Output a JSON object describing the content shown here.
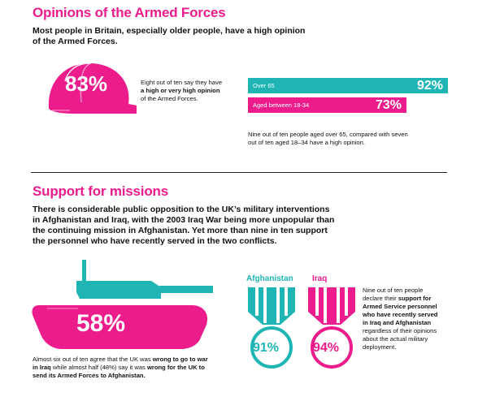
{
  "colors": {
    "pink": "#ec1c8c",
    "teal": "#1fb5b5",
    "dark": "#111111"
  },
  "section1": {
    "title": "Opinions of the Armed Forces",
    "lead_line1": "Most people in Britain, especially older people, have a high opinion",
    "lead_line2": "of the Armed Forces.",
    "helmet_icon": "helmet-icon",
    "helmet_percent": "83%",
    "helmet_text_line1": "Eight out of ten say they have",
    "helmet_text_bold": "a high or very high opinion",
    "helmet_text_line3": "of the Armed Forces.",
    "bars": [
      {
        "label": "Over 65",
        "percent": "92%",
        "value": 92,
        "color": "#1fb5b5"
      },
      {
        "label": "Aged between 18-34",
        "percent": "73%",
        "value": 73,
        "color": "#ec1c8c"
      }
    ],
    "note_line1": "Nine out of ten people aged over 65, compared with seven",
    "note_line2": "out of ten aged 18–34 have a high opinion."
  },
  "section2": {
    "title": "Support for missions",
    "lead_line1": "There is considerable public opposition to the UK’s military interventions",
    "lead_line2": "in Afghanistan and Iraq, with the 2003 Iraq War being more unpopular than",
    "lead_line3": "the continuing mission in Afghanistan. Yet more than nine in ten support",
    "lead_line4": "the personnel who have recently served in the two conflicts.",
    "tank_icon": "tank-icon",
    "tank_percent": "58%",
    "tank_text_l1a": "Almost six out of ten agree that the UK was ",
    "tank_text_l1b": "wrong to go to war",
    "tank_text_l2a": "in Iraq",
    "tank_text_l2b": " while almost half (48%) say it was ",
    "tank_text_l2c": "wrong for the UK to",
    "tank_text_l3": "send its Armed Forces to Afghanistan.",
    "medals": [
      {
        "label": "Afghanistan",
        "percent": "91%",
        "color": "#1fb5b5",
        "icon": "medal-icon"
      },
      {
        "label": "Iraq",
        "percent": "94%",
        "color": "#ec1c8c",
        "icon": "medal-icon"
      }
    ],
    "medal_text_l1": "Nine out of ten people",
    "medal_text_l2": "declare their ",
    "medal_text_l2b": "support for",
    "medal_text_l3": "Armed Service personnel",
    "medal_text_l4": "who have recently served",
    "medal_text_l5": "in Iraq and Afghanistan",
    "medal_text_l6": "regardless of their opinions",
    "medal_text_l7": "about the actual military",
    "medal_text_l8": "deployment."
  }
}
